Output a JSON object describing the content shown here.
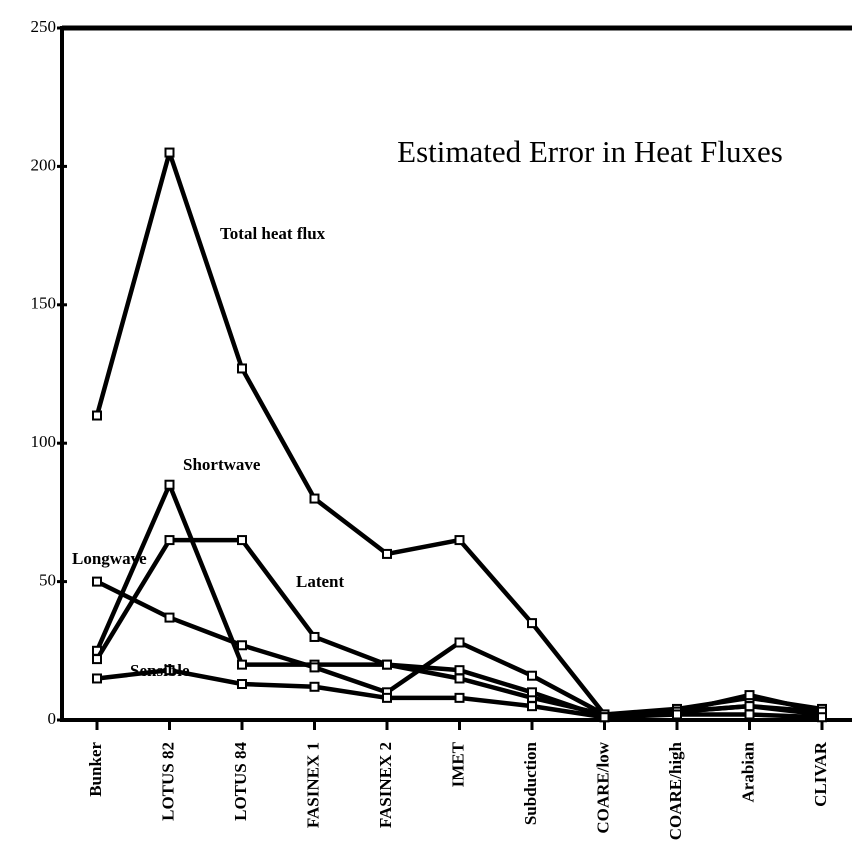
{
  "chart_data": {
    "type": "line",
    "title": "Estimated Error in Heat Fluxes",
    "categories": [
      "Bunker",
      "LOTUS 82",
      "LOTUS 84",
      "FASINEX 1",
      "FASINEX 2",
      "IMET",
      "Subduction",
      "COARE/low",
      "COARE/high",
      "Arabian",
      "CLIVAR"
    ],
    "series": [
      {
        "name": "Total heat flux",
        "color": "#000000",
        "values": [
          110,
          205,
          127,
          80,
          60,
          65,
          35,
          2,
          4,
          8,
          4
        ]
      },
      {
        "name": "Shortwave",
        "color": "#000000",
        "values": [
          25,
          85,
          20,
          20,
          20,
          15,
          8,
          2,
          3,
          9,
          3
        ]
      },
      {
        "name": "Longwave",
        "color": "#000000",
        "values": [
          50,
          37,
          27,
          19,
          10,
          28,
          16,
          2,
          3,
          5,
          2
        ]
      },
      {
        "name": "Latent",
        "color": "#000000",
        "values": [
          22,
          65,
          65,
          30,
          20,
          18,
          10,
          1,
          3,
          5,
          3
        ]
      },
      {
        "name": "Sensible",
        "color": "#000000",
        "values": [
          15,
          18,
          13,
          12,
          8,
          8,
          5,
          1,
          2,
          2,
          1
        ]
      }
    ],
    "ylim": [
      0,
      250
    ],
    "yticks": [
      0,
      50,
      100,
      150,
      200,
      250
    ]
  }
}
